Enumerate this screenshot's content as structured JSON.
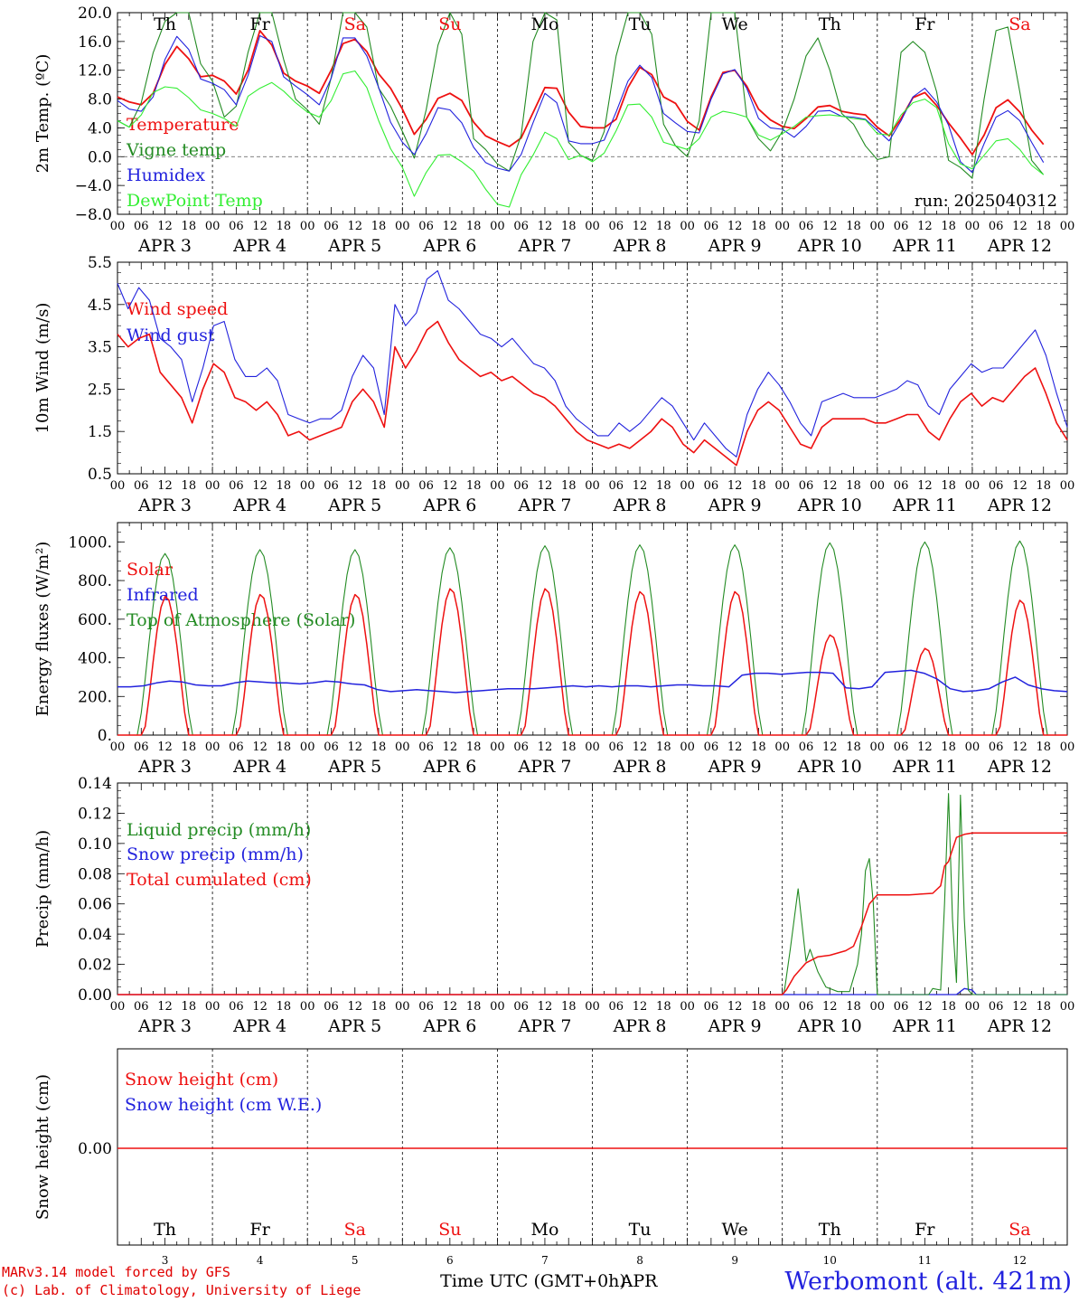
{
  "chart_data": [
    {
      "type": "line",
      "ylabel": "2m Temp. (ºC)",
      "ylim": [
        -8,
        20
      ],
      "yticks": [
        "−8.0",
        "−4.0",
        "0.0",
        "4.0",
        "8.0",
        "12.0",
        "16.0",
        "20.0"
      ],
      "reference_line": 0,
      "annotation": "run: 2025040312",
      "series": [
        {
          "name": "Temperature",
          "color": "#ee1111",
          "values": [
            8.3,
            7.6,
            7.2,
            8.8,
            12.8,
            15.3,
            13.6,
            11.1,
            11.3,
            10.5,
            8.7,
            12.0,
            17.5,
            15.5,
            11.6,
            10.5,
            9.8,
            8.8,
            12.0,
            15.7,
            16.3,
            14.6,
            11.5,
            9.5,
            6.6,
            3.1,
            5.2,
            8.1,
            8.8,
            7.8,
            4.8,
            2.9,
            2.1,
            1.4,
            2.6,
            6.1,
            9.6,
            9.5,
            6.2,
            4.2,
            4.0,
            4.0,
            5.2,
            9.6,
            12.4,
            11.4,
            8.3,
            7.4,
            4.9,
            3.7,
            8.3,
            11.7,
            12.0,
            9.8,
            6.6,
            5.1,
            4.2,
            3.9,
            5.3,
            6.9,
            7.1,
            6.3,
            6.0,
            5.8,
            4.1,
            2.9,
            5.3,
            8.2,
            8.9,
            7.1,
            4.7,
            2.6,
            0.3,
            3.0,
            6.8,
            7.9,
            6.2,
            3.7,
            1.7
          ]
        },
        {
          "name": "Vigne temp",
          "color": "#238b23",
          "values": [
            5.0,
            4.1,
            7.5,
            14.4,
            18.8,
            24.0,
            21.0,
            12.9,
            10.5,
            5.5,
            7.0,
            14.5,
            22.0,
            22.5,
            13.5,
            8.0,
            6.5,
            4.5,
            11.0,
            21.0,
            23.0,
            18.0,
            9.5,
            7.0,
            3.5,
            -0.2,
            6.5,
            15.5,
            22.0,
            17.0,
            2.5,
            1.0,
            -1.0,
            -2.0,
            3.0,
            16.0,
            23.0,
            19.0,
            2.0,
            0.2,
            -0.5,
            3.5,
            14.0,
            22.0,
            23.0,
            17.0,
            4.5,
            1.5,
            0.0,
            5.0,
            20.0,
            25.0,
            21.0,
            5.5,
            2.5,
            0.8,
            3.5,
            8.0,
            14.0,
            16.5,
            12.0,
            6.0,
            4.5,
            1.5,
            -0.4,
            0.0,
            14.5,
            16.0,
            14.5,
            9.0,
            -0.5,
            -1.5,
            -3.0,
            8.0,
            17.5,
            18.0,
            9.0,
            -0.5,
            -2.5
          ]
        },
        {
          "name": "Humidex",
          "color": "#2222dd",
          "values": [
            7.8,
            6.6,
            6.3,
            8.3,
            13.5,
            16.7,
            14.9,
            10.8,
            10.2,
            9.3,
            7.2,
            11.3,
            16.8,
            16.0,
            11.1,
            9.8,
            8.6,
            7.2,
            10.9,
            16.5,
            16.5,
            14.0,
            9.6,
            4.8,
            2.0,
            0.3,
            3.2,
            6.8,
            6.5,
            4.7,
            1.3,
            -0.8,
            -1.6,
            -2.0,
            0.3,
            4.7,
            8.8,
            7.5,
            2.2,
            1.8,
            1.8,
            2.3,
            6.2,
            10.5,
            12.7,
            11.0,
            6.0,
            4.7,
            3.5,
            3.3,
            8.0,
            11.5,
            12.1,
            9.5,
            5.3,
            4.0,
            3.8,
            2.7,
            4.2,
            6.3,
            6.4,
            5.6,
            5.5,
            5.2,
            3.7,
            2.2,
            5.0,
            8.3,
            9.5,
            7.6,
            4.4,
            -0.7,
            -2.2,
            1.8,
            5.5,
            6.4,
            5.0,
            2.0,
            -0.8
          ]
        },
        {
          "name": "DewPoint Temp",
          "color": "#33ee33",
          "values": [
            5.0,
            4.1,
            5.8,
            8.9,
            9.7,
            9.5,
            8.2,
            6.5,
            6.0,
            5.3,
            4.2,
            8.4,
            9.5,
            10.3,
            9.1,
            7.5,
            6.2,
            5.5,
            7.8,
            11.5,
            11.9,
            9.6,
            5.0,
            1.1,
            -1.5,
            -5.5,
            -2.2,
            0.2,
            0.3,
            -0.7,
            -2.0,
            -4.5,
            -6.6,
            -7.0,
            -2.5,
            0.2,
            3.4,
            2.5,
            -0.4,
            0.2,
            -0.7,
            0.5,
            3.6,
            7.2,
            7.3,
            5.5,
            2.0,
            1.5,
            1.0,
            2.5,
            5.5,
            6.3,
            6.0,
            5.5,
            3.0,
            2.3,
            3.2,
            4.2,
            5.5,
            5.7,
            5.8,
            5.6,
            5.3,
            5.1,
            3.2,
            3.0,
            5.8,
            7.5,
            8.0,
            6.8,
            1.8,
            -1.0,
            -1.7,
            0.2,
            2.2,
            2.5,
            1.0,
            -1.2,
            -2.5
          ]
        }
      ]
    },
    {
      "type": "line",
      "ylabel": "10m Wind (m/s)",
      "ylim": [
        0.5,
        5.5
      ],
      "yticks": [
        "0.5",
        "1.5",
        "2.5",
        "3.5",
        "4.5",
        "5.5"
      ],
      "reference_line": 5,
      "series": [
        {
          "name": "Wind speed",
          "color": "#ee1111",
          "values": [
            3.8,
            3.5,
            3.7,
            3.8,
            2.9,
            2.6,
            2.3,
            1.7,
            2.5,
            3.1,
            2.9,
            2.3,
            2.2,
            2.0,
            2.2,
            1.9,
            1.4,
            1.5,
            1.3,
            1.4,
            1.5,
            1.6,
            2.2,
            2.5,
            2.2,
            1.6,
            3.5,
            3.0,
            3.4,
            3.9,
            4.1,
            3.6,
            3.2,
            3.0,
            2.8,
            2.9,
            2.7,
            2.8,
            2.6,
            2.4,
            2.3,
            2.1,
            1.8,
            1.5,
            1.3,
            1.2,
            1.1,
            1.2,
            1.1,
            1.3,
            1.5,
            1.8,
            1.6,
            1.2,
            1.0,
            1.3,
            1.1,
            0.9,
            0.7,
            1.5,
            2.0,
            2.2,
            2.0,
            1.6,
            1.2,
            1.1,
            1.6,
            1.8,
            1.8,
            1.8,
            1.8,
            1.7,
            1.7,
            1.8,
            1.9,
            1.9,
            1.5,
            1.3,
            1.8,
            2.2,
            2.4,
            2.1,
            2.3,
            2.2,
            2.5,
            2.8,
            3.0,
            2.4,
            1.7,
            1.3
          ]
        },
        {
          "name": "Wind gust",
          "color": "#2222dd",
          "values": [
            5.0,
            4.4,
            4.9,
            4.6,
            3.7,
            3.5,
            3.2,
            2.2,
            3.0,
            4.0,
            4.1,
            3.2,
            2.8,
            2.8,
            3.0,
            2.7,
            1.9,
            1.8,
            1.7,
            1.8,
            1.8,
            2.0,
            2.8,
            3.3,
            3.0,
            1.9,
            4.5,
            4.0,
            4.3,
            5.1,
            5.3,
            4.6,
            4.4,
            4.1,
            3.8,
            3.7,
            3.5,
            3.7,
            3.4,
            3.1,
            3.0,
            2.7,
            2.1,
            1.8,
            1.6,
            1.4,
            1.4,
            1.7,
            1.5,
            1.7,
            2.0,
            2.3,
            2.1,
            1.7,
            1.3,
            1.7,
            1.4,
            1.1,
            0.9,
            1.9,
            2.5,
            2.9,
            2.6,
            2.2,
            1.7,
            1.4,
            2.2,
            2.3,
            2.4,
            2.3,
            2.3,
            2.3,
            2.4,
            2.5,
            2.7,
            2.6,
            2.1,
            1.9,
            2.5,
            2.8,
            3.1,
            2.9,
            3.0,
            3.0,
            3.3,
            3.6,
            3.9,
            3.3,
            2.4,
            1.6
          ]
        }
      ]
    },
    {
      "type": "line",
      "ylabel": "Energy fluxes (W/m²)",
      "ylim": [
        0,
        1100
      ],
      "yticks": [
        "0.",
        "200.",
        "400.",
        "600.",
        "800.",
        "1000."
      ],
      "solar_peaks": [
        720,
        730,
        730,
        760,
        760,
        745,
        745,
        520,
        450,
        700
      ],
      "toa_peaks": [
        940,
        960,
        960,
        970,
        980,
        985,
        985,
        995,
        1000,
        1005
      ],
      "infrared": [
        250,
        250,
        255,
        270,
        280,
        275,
        260,
        255,
        255,
        270,
        280,
        275,
        270,
        270,
        265,
        270,
        280,
        275,
        265,
        260,
        235,
        225,
        230,
        235,
        230,
        225,
        220,
        225,
        230,
        235,
        240,
        240,
        240,
        245,
        250,
        255,
        250,
        255,
        250,
        255,
        255,
        250,
        255,
        260,
        260,
        255,
        255,
        250,
        310,
        320,
        320,
        315,
        320,
        325,
        325,
        320,
        245,
        240,
        250,
        325,
        330,
        335,
        320,
        290,
        240,
        225,
        230,
        240,
        275,
        300,
        260,
        240,
        230,
        225
      ],
      "series": [
        {
          "name": "Solar",
          "color": "#ee1111"
        },
        {
          "name": "Infrared",
          "color": "#2222dd"
        },
        {
          "name": "Top of Atmosphere (Solar)",
          "color": "#238b23"
        }
      ]
    },
    {
      "type": "line",
      "ylabel": "Precip (mm/h)",
      "ylim": [
        0,
        0.14
      ],
      "yticks": [
        "0.00",
        "0.02",
        "0.04",
        "0.06",
        "0.08",
        "0.10",
        "0.12",
        "0.14"
      ],
      "liquid_points": [
        [
          0,
          0
        ],
        [
          168,
          0
        ],
        [
          168.5,
          0.002
        ],
        [
          170,
          0.03
        ],
        [
          172,
          0.07
        ],
        [
          174,
          0.022
        ],
        [
          175,
          0.03
        ],
        [
          177,
          0.015
        ],
        [
          179,
          0.005
        ],
        [
          182,
          0.002
        ],
        [
          185,
          0.002
        ],
        [
          187,
          0.02
        ],
        [
          188,
          0.04
        ],
        [
          189,
          0.082
        ],
        [
          190,
          0.09
        ],
        [
          191,
          0.06
        ],
        [
          192,
          0.0
        ],
        [
          205,
          0.0
        ],
        [
          206,
          0.004
        ],
        [
          208,
          0.003
        ],
        [
          209,
          0.06
        ],
        [
          210,
          0.133
        ],
        [
          211,
          0.05
        ],
        [
          212,
          0.008
        ],
        [
          213,
          0.132
        ],
        [
          214,
          0.05
        ],
        [
          215,
          0.003
        ],
        [
          216,
          0.0
        ],
        [
          240,
          0.0
        ]
      ],
      "snow_points": [
        [
          0,
          0
        ],
        [
          212,
          0
        ],
        [
          214,
          0.004
        ],
        [
          216,
          0.003
        ],
        [
          217,
          0
        ],
        [
          240,
          0
        ]
      ],
      "cumulated_points": [
        [
          0,
          0
        ],
        [
          168,
          0
        ],
        [
          169,
          0.003
        ],
        [
          171,
          0.012
        ],
        [
          174,
          0.021
        ],
        [
          177,
          0.025
        ],
        [
          180,
          0.026
        ],
        [
          184,
          0.029
        ],
        [
          186,
          0.032
        ],
        [
          188,
          0.045
        ],
        [
          190,
          0.06
        ],
        [
          192,
          0.066
        ],
        [
          197,
          0.066
        ],
        [
          200,
          0.066
        ],
        [
          206,
          0.067
        ],
        [
          208,
          0.072
        ],
        [
          209,
          0.085
        ],
        [
          210,
          0.088
        ],
        [
          212,
          0.104
        ],
        [
          214,
          0.106
        ],
        [
          216,
          0.107
        ],
        [
          240,
          0.107
        ]
      ],
      "series": [
        {
          "name": "Liquid precip (mm/h)",
          "color": "#238b23"
        },
        {
          "name": "Snow precip (mm/h)",
          "color": "#2222dd"
        },
        {
          "name": "Total cumulated (cm)",
          "color": "#ee1111"
        }
      ]
    },
    {
      "type": "line",
      "ylabel": "Snow height (cm)",
      "yticks": [
        "0.00"
      ],
      "values": [
        0,
        0
      ],
      "series": [
        {
          "name": "Snow height (cm)",
          "color": "#ee1111"
        },
        {
          "name": "Snow height (cm W.E.)",
          "color": "#2222dd"
        }
      ]
    }
  ],
  "time_axis": {
    "hour_labels": [
      "00",
      "06",
      "12",
      "18"
    ],
    "date_labels": [
      "APR  3",
      "APR  4",
      "APR  5",
      "APR  6",
      "APR  7",
      "APR  8",
      "APR  9",
      "APR 10",
      "APR 11",
      "APR 12"
    ],
    "weekdays": [
      "Th",
      "Fr",
      "Sa",
      "Su",
      "Mo",
      "Tu",
      "We",
      "Th",
      "Fr",
      "Sa"
    ],
    "weekday_colors": [
      "#000000",
      "#000000",
      "#ee1111",
      "#ee1111",
      "#000000",
      "#000000",
      "#000000",
      "#000000",
      "#000000",
      "#ee1111"
    ],
    "day_numbers": [
      "3",
      "4",
      "5",
      "6",
      "7",
      "8",
      "9",
      "10",
      "11",
      "12"
    ],
    "xlabel": "Time UTC (GMT+0h)",
    "month": "APR"
  },
  "footer": {
    "credit_model": "MARv3.14 model forced by GFS",
    "credit_lab": "(c) Lab. of Climatology, University of Liege",
    "station": "Werbomont (alt. 421m)"
  }
}
